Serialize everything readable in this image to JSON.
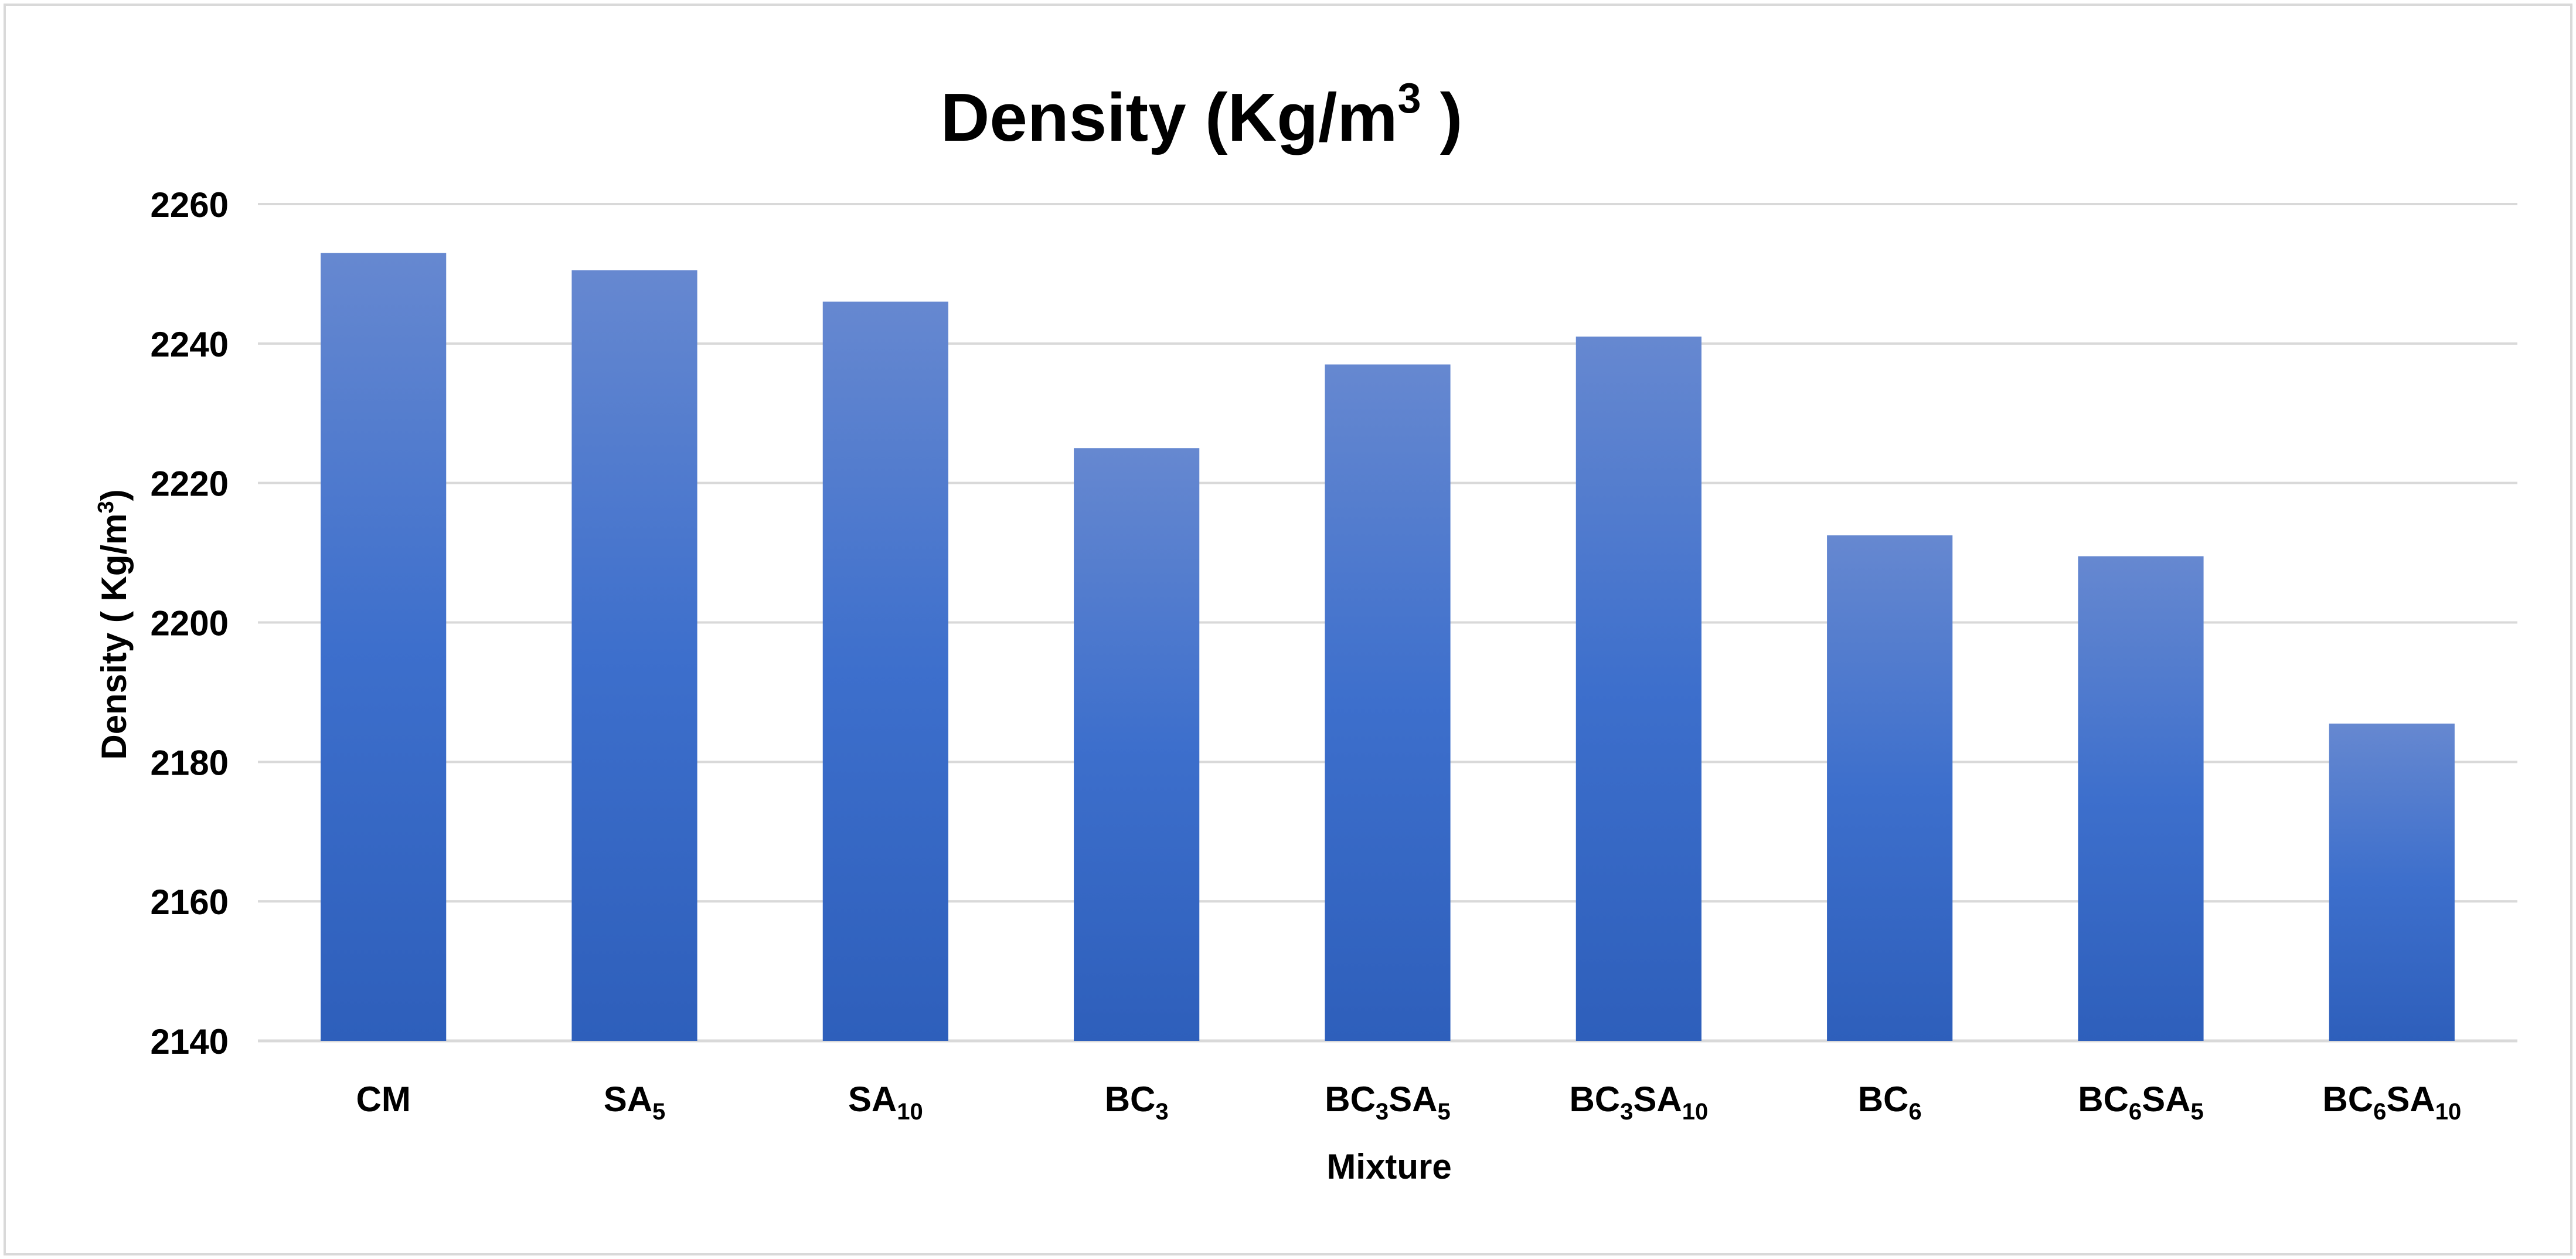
{
  "chart_data": {
    "type": "bar",
    "title": "Density (Kg/m",
    "title_sup": "3",
    "title_end": " )",
    "ylabel": "Density ( Kg/m",
    "ylabel_sup": "3",
    "ylabel_end": ")",
    "xlabel": "Mixture",
    "ylim": [
      2140,
      2260
    ],
    "yticks": [
      2140,
      2160,
      2180,
      2200,
      2220,
      2240,
      2260
    ],
    "grid": true,
    "legend": "none",
    "categories": [
      {
        "parts": [
          {
            "t": "CM",
            "sub": false
          }
        ]
      },
      {
        "parts": [
          {
            "t": "SA",
            "sub": false
          },
          {
            "t": "5",
            "sub": true
          }
        ]
      },
      {
        "parts": [
          {
            "t": "SA",
            "sub": false
          },
          {
            "t": "10",
            "sub": true
          }
        ]
      },
      {
        "parts": [
          {
            "t": "BC",
            "sub": false
          },
          {
            "t": "3",
            "sub": true
          }
        ]
      },
      {
        "parts": [
          {
            "t": "BC",
            "sub": false
          },
          {
            "t": "3",
            "sub": true
          },
          {
            "t": "SA",
            "sub": false
          },
          {
            "t": "5",
            "sub": true
          }
        ]
      },
      {
        "parts": [
          {
            "t": "BC",
            "sub": false
          },
          {
            "t": "3",
            "sub": true
          },
          {
            "t": "SA",
            "sub": false
          },
          {
            "t": "10",
            "sub": true
          }
        ]
      },
      {
        "parts": [
          {
            "t": "BC",
            "sub": false
          },
          {
            "t": "6",
            "sub": true
          }
        ]
      },
      {
        "parts": [
          {
            "t": "BC",
            "sub": false
          },
          {
            "t": "6",
            "sub": true
          },
          {
            "t": "SA",
            "sub": false
          },
          {
            "t": "5",
            "sub": true
          }
        ]
      },
      {
        "parts": [
          {
            "t": "BC",
            "sub": false
          },
          {
            "t": "6",
            "sub": true
          },
          {
            "t": "SA",
            "sub": false
          },
          {
            "t": "10",
            "sub": true
          }
        ]
      }
    ],
    "values": [
      2253,
      2250.5,
      2246,
      2225,
      2237,
      2241,
      2212.5,
      2209.5,
      2185.5
    ],
    "colors": {
      "bar_top": "#6688d0",
      "bar_mid": "#3d6fcc",
      "bar_bottom": "#2e5fbb",
      "grid": "#d9d9d9",
      "axis": "#d9d9d9",
      "frame": "#d9d9d9"
    }
  }
}
